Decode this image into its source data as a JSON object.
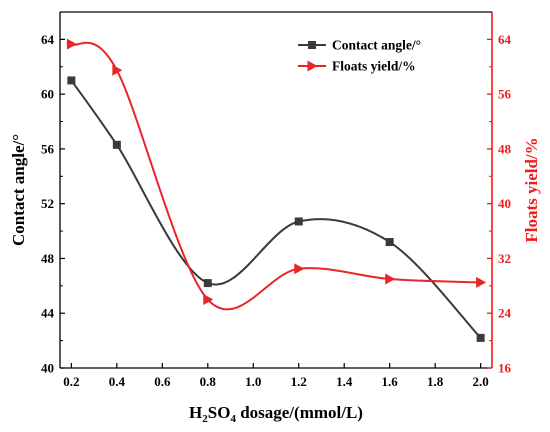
{
  "chart_data": {
    "type": "line",
    "x": [
      0.2,
      0.4,
      0.8,
      1.2,
      1.6,
      2.0
    ],
    "x_ticks": [
      "0.2",
      "0.4",
      "0.6",
      "0.8",
      "1.0",
      "1.2",
      "1.4",
      "1.6",
      "1.8",
      "2.0"
    ],
    "xlim": [
      0.15,
      2.05
    ],
    "xlabel": {
      "prefix": "H",
      "sub1": "2",
      "mid": "SO",
      "sub2": "4",
      "suffix": " dosage/(mmol/L)"
    },
    "y_left": {
      "label": "Contact angle/°",
      "lim": [
        40,
        66
      ],
      "ticks": [
        "40",
        "44",
        "48",
        "52",
        "56",
        "60",
        "64"
      ],
      "color": "#000000"
    },
    "y_right": {
      "label": "Floats yield/%",
      "lim": [
        16,
        68
      ],
      "ticks": [
        "16",
        "24",
        "32",
        "40",
        "48",
        "56",
        "64"
      ],
      "color": "#ee1c1c"
    },
    "series": [
      {
        "name": "Contact angle/°",
        "axis": "left",
        "marker": "square",
        "color": "#3a3a3a",
        "values": [
          61.0,
          56.3,
          46.2,
          50.7,
          49.2,
          42.2
        ]
      },
      {
        "name": "Floats yield/%",
        "axis": "right",
        "marker": "triangle-right",
        "color": "#e8262a",
        "values": [
          63.3,
          59.5,
          26.0,
          30.5,
          29.0,
          28.5
        ]
      }
    ],
    "legend_position": "top-right",
    "grid": false
  }
}
